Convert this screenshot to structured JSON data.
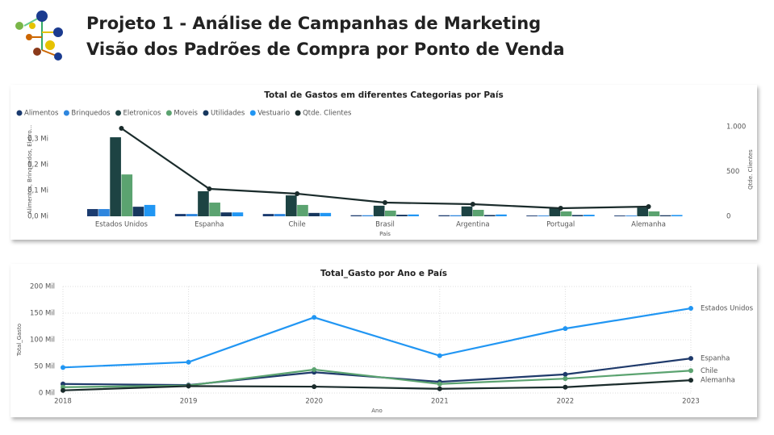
{
  "header": {
    "title": [
      "Projeto 1 - Análise de Campanhas de Marketing",
      "Visão dos Padrões de Compra por Ponto de Venda"
    ]
  },
  "chart_data": [
    {
      "type": "combo",
      "title": "Total de Gastos em diferentes Categorias por País",
      "x_label": "País",
      "y_label": "Alimentos, Brinquedos, Eletro...",
      "y2_label": "Qtde. Clientes",
      "legend": "top-left",
      "grid": false,
      "categories": [
        "Estados Unidos",
        "Espanha",
        "Chile",
        "Brasil",
        "Argentina",
        "Portugal",
        "Alemanha"
      ],
      "ylim": [
        0,
        362500
      ],
      "yticks": [
        {
          "value": 0,
          "label": "0,0 Mi"
        },
        {
          "value": 100000,
          "label": "0,1 Mi"
        },
        {
          "value": 200000,
          "label": "0,2 Mi"
        },
        {
          "value": 300000,
          "label": "0,3 Mi"
        }
      ],
      "y2lim": [
        0,
        1045
      ],
      "y2ticks": [
        0,
        500,
        {
          "value": 1000,
          "label": "1.000"
        }
      ],
      "series": [
        {
          "name": "Alimentos",
          "color": "#1b3b6f",
          "type": "bar",
          "values": [
            28000,
            9000,
            9000,
            4000,
            4000,
            3000,
            3000
          ]
        },
        {
          "name": "Brinquedos",
          "color": "#2e86de",
          "type": "bar",
          "values": [
            28000,
            9000,
            9000,
            4000,
            4000,
            3000,
            3000
          ]
        },
        {
          "name": "Eletronicos",
          "color": "#1d4343",
          "type": "bar",
          "values": [
            306000,
            97000,
            81000,
            41000,
            38000,
            34000,
            34000
          ]
        },
        {
          "name": "Moveis",
          "color": "#5ba370",
          "type": "bar",
          "values": [
            162000,
            53000,
            44000,
            22000,
            25000,
            19000,
            19000
          ]
        },
        {
          "name": "Utilidades",
          "color": "#17375e",
          "type": "bar",
          "values": [
            37000,
            15000,
            13000,
            6000,
            5000,
            5000,
            4000
          ]
        },
        {
          "name": "Vestuario",
          "color": "#2196f3",
          "type": "bar",
          "values": [
            44000,
            15000,
            13000,
            7000,
            7000,
            6000,
            5000
          ]
        },
        {
          "name": "Qtde. Clientes",
          "color": "#1a2b2b",
          "type": "line",
          "axis": "y2",
          "values": [
            982,
            306,
            252,
            153,
            135,
            90,
            108
          ]
        }
      ]
    },
    {
      "type": "line",
      "title": "Total_Gasto por Ano e País",
      "x_label": "Ano",
      "y_label": "Total_Gasto",
      "legend": "line-end",
      "grid": true,
      "x": [
        2018,
        2019,
        2020,
        2021,
        2022,
        2023
      ],
      "xlim": [
        2018,
        2023
      ],
      "xticks": [
        2018,
        2019,
        2020,
        2021,
        2022,
        2023
      ],
      "ylim": [
        0,
        200000
      ],
      "yticks": [
        {
          "value": 0,
          "label": "0 Mil"
        },
        {
          "value": 50000,
          "label": "50 Mil"
        },
        {
          "value": 100000,
          "label": "100 Mil"
        },
        {
          "value": 150000,
          "label": "150 Mil"
        },
        {
          "value": 200000,
          "label": "200 Mil"
        }
      ],
      "series": [
        {
          "name": "Estados Unidos",
          "color": "#2196f3",
          "values": [
            48000,
            58000,
            142000,
            70000,
            121000,
            159000
          ]
        },
        {
          "name": "Espanha",
          "color": "#1f3a6b",
          "values": [
            17000,
            15000,
            39000,
            21000,
            35000,
            65000
          ]
        },
        {
          "name": "Chile",
          "color": "#5ba370",
          "values": [
            11000,
            14000,
            44000,
            17000,
            27000,
            42000
          ]
        },
        {
          "name": "Alemanha",
          "color": "#1a2b2b",
          "values": [
            5000,
            13000,
            12000,
            8000,
            11000,
            24000
          ]
        }
      ]
    }
  ]
}
